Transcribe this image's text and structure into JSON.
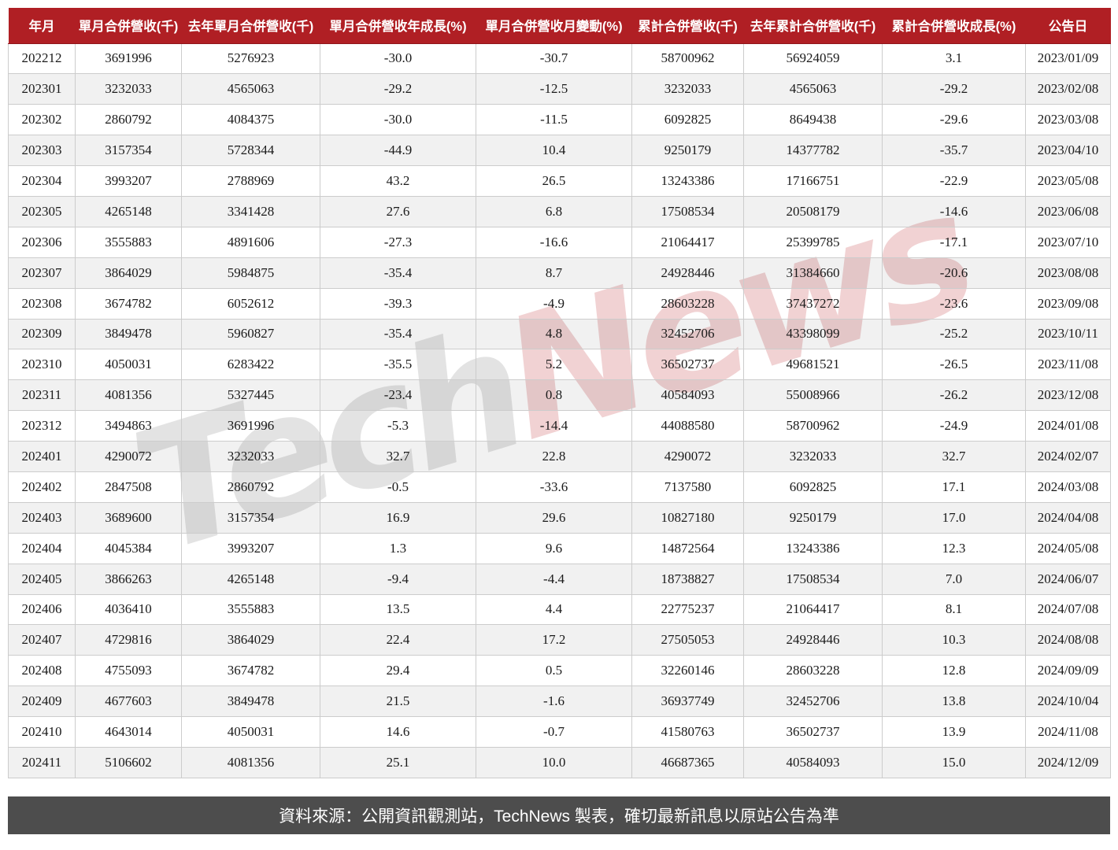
{
  "chart_data": {
    "type": "table",
    "columns": [
      "年月",
      "單月合併營收(千)",
      "去年單月合併營收(千)",
      "單月合併營收年成長(%)",
      "單月合併營收月變動(%)",
      "累計合併營收(千)",
      "去年累計合併營收(千)",
      "累計合併營收成長(%)",
      "公告日"
    ],
    "rows": [
      [
        "202212",
        "3691996",
        "5276923",
        "-30.0",
        "-30.7",
        "58700962",
        "56924059",
        "3.1",
        "2023/01/09"
      ],
      [
        "202301",
        "3232033",
        "4565063",
        "-29.2",
        "-12.5",
        "3232033",
        "4565063",
        "-29.2",
        "2023/02/08"
      ],
      [
        "202302",
        "2860792",
        "4084375",
        "-30.0",
        "-11.5",
        "6092825",
        "8649438",
        "-29.6",
        "2023/03/08"
      ],
      [
        "202303",
        "3157354",
        "5728344",
        "-44.9",
        "10.4",
        "9250179",
        "14377782",
        "-35.7",
        "2023/04/10"
      ],
      [
        "202304",
        "3993207",
        "2788969",
        "43.2",
        "26.5",
        "13243386",
        "17166751",
        "-22.9",
        "2023/05/08"
      ],
      [
        "202305",
        "4265148",
        "3341428",
        "27.6",
        "6.8",
        "17508534",
        "20508179",
        "-14.6",
        "2023/06/08"
      ],
      [
        "202306",
        "3555883",
        "4891606",
        "-27.3",
        "-16.6",
        "21064417",
        "25399785",
        "-17.1",
        "2023/07/10"
      ],
      [
        "202307",
        "3864029",
        "5984875",
        "-35.4",
        "8.7",
        "24928446",
        "31384660",
        "-20.6",
        "2023/08/08"
      ],
      [
        "202308",
        "3674782",
        "6052612",
        "-39.3",
        "-4.9",
        "28603228",
        "37437272",
        "-23.6",
        "2023/09/08"
      ],
      [
        "202309",
        "3849478",
        "5960827",
        "-35.4",
        "4.8",
        "32452706",
        "43398099",
        "-25.2",
        "2023/10/11"
      ],
      [
        "202310",
        "4050031",
        "6283422",
        "-35.5",
        "5.2",
        "36502737",
        "49681521",
        "-26.5",
        "2023/11/08"
      ],
      [
        "202311",
        "4081356",
        "5327445",
        "-23.4",
        "0.8",
        "40584093",
        "55008966",
        "-26.2",
        "2023/12/08"
      ],
      [
        "202312",
        "3494863",
        "3691996",
        "-5.3",
        "-14.4",
        "44088580",
        "58700962",
        "-24.9",
        "2024/01/08"
      ],
      [
        "202401",
        "4290072",
        "3232033",
        "32.7",
        "22.8",
        "4290072",
        "3232033",
        "32.7",
        "2024/02/07"
      ],
      [
        "202402",
        "2847508",
        "2860792",
        "-0.5",
        "-33.6",
        "7137580",
        "6092825",
        "17.1",
        "2024/03/08"
      ],
      [
        "202403",
        "3689600",
        "3157354",
        "16.9",
        "29.6",
        "10827180",
        "9250179",
        "17.0",
        "2024/04/08"
      ],
      [
        "202404",
        "4045384",
        "3993207",
        "1.3",
        "9.6",
        "14872564",
        "13243386",
        "12.3",
        "2024/05/08"
      ],
      [
        "202405",
        "3866263",
        "4265148",
        "-9.4",
        "-4.4",
        "18738827",
        "17508534",
        "7.0",
        "2024/06/07"
      ],
      [
        "202406",
        "4036410",
        "3555883",
        "13.5",
        "4.4",
        "22775237",
        "21064417",
        "8.1",
        "2024/07/08"
      ],
      [
        "202407",
        "4729816",
        "3864029",
        "22.4",
        "17.2",
        "27505053",
        "24928446",
        "10.3",
        "2024/08/08"
      ],
      [
        "202408",
        "4755093",
        "3674782",
        "29.4",
        "0.5",
        "32260146",
        "28603228",
        "12.8",
        "2024/09/09"
      ],
      [
        "202409",
        "4677603",
        "3849478",
        "21.5",
        "-1.6",
        "36937749",
        "32452706",
        "13.8",
        "2024/10/04"
      ],
      [
        "202410",
        "4643014",
        "4050031",
        "14.6",
        "-0.7",
        "41580763",
        "36502737",
        "13.9",
        "2024/11/08"
      ],
      [
        "202411",
        "5106602",
        "4081356",
        "25.1",
        "10.0",
        "46687365",
        "40584093",
        "15.0",
        "2024/12/09"
      ]
    ],
    "title": "",
    "legend_position": "none",
    "grid": "on"
  },
  "watermark": {
    "part1": "Tech",
    "part2": "News"
  },
  "footer": {
    "note": "資料來源：公開資訊觀測站，TechNews 製表，確切最新訊息以原站公告為準"
  },
  "colors": {
    "header_bg": "#b01f24",
    "header_text": "#ffffff",
    "row_alt": "#f0f0f0",
    "cell_border": "#cccccc",
    "footer_bg": "#4d4d4d",
    "footer_text": "#ffffff",
    "watermark_gray": "rgba(40,40,40,0.13)",
    "watermark_red": "rgba(184,28,34,0.20)"
  }
}
